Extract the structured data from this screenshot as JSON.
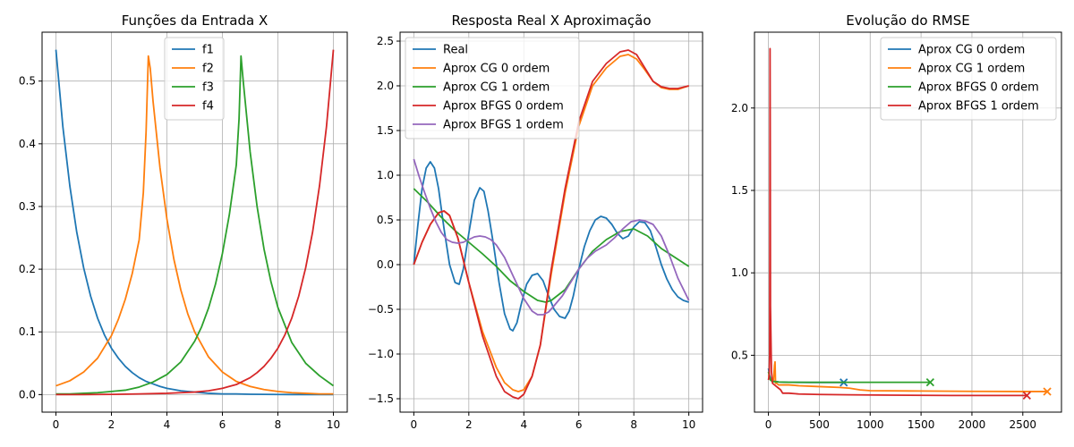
{
  "chart_data": [
    {
      "type": "line",
      "title": "Funções da Entrada X",
      "xlabel": "",
      "ylabel": "",
      "xlim": [
        -0.5,
        10.5
      ],
      "ylim": [
        -0.028,
        0.578
      ],
      "xticks": [
        0,
        2,
        4,
        6,
        8,
        10
      ],
      "yticks": [
        0.0,
        0.1,
        0.2,
        0.3,
        0.4,
        0.5
      ],
      "ytick_labels": [
        "0.0",
        "0.1",
        "0.2",
        "0.3",
        "0.4",
        "0.5"
      ],
      "grid": true,
      "legend_position": "top-center",
      "series": [
        {
          "name": "f1",
          "color": "#1f77b4",
          "x": [
            0,
            0.25,
            0.5,
            0.75,
            1,
            1.25,
            1.5,
            1.75,
            2,
            2.25,
            2.5,
            2.75,
            3,
            3.25,
            3.5,
            3.75,
            4,
            4.25,
            4.5,
            4.75,
            5,
            5.5,
            6,
            6.5,
            7,
            7.5,
            8,
            8.5,
            9,
            9.5,
            10
          ],
          "y": [
            0.55,
            0.427,
            0.333,
            0.259,
            0.202,
            0.157,
            0.122,
            0.095,
            0.074,
            0.058,
            0.045,
            0.035,
            0.027,
            0.021,
            0.017,
            0.013,
            0.01,
            0.008,
            0.006,
            0.005,
            0.004,
            0.002,
            0.001,
            0.001,
            0.0005,
            0.0003,
            0.0002,
            0.0001,
            0.0001,
            0.0,
            0.0
          ]
        },
        {
          "name": "f2",
          "color": "#ff7f0e",
          "x": [
            0,
            0.5,
            1,
            1.5,
            2,
            2.25,
            2.5,
            2.75,
            3,
            3.15,
            3.25,
            3.33,
            3.4,
            3.5,
            3.75,
            4,
            4.25,
            4.5,
            4.75,
            5,
            5.5,
            6,
            6.5,
            7,
            7.5,
            8,
            8.5,
            9,
            9.5,
            10
          ],
          "y": [
            0.014,
            0.022,
            0.036,
            0.058,
            0.094,
            0.12,
            0.152,
            0.193,
            0.247,
            0.322,
            0.42,
            0.54,
            0.52,
            0.468,
            0.362,
            0.28,
            0.216,
            0.167,
            0.129,
            0.1,
            0.06,
            0.036,
            0.021,
            0.013,
            0.008,
            0.005,
            0.003,
            0.002,
            0.001,
            0.001
          ]
        },
        {
          "name": "f3",
          "color": "#2ca02c",
          "x": [
            0,
            0.5,
            1,
            1.5,
            2,
            2.5,
            3,
            3.5,
            4,
            4.5,
            5,
            5.25,
            5.5,
            5.75,
            6,
            6.25,
            6.5,
            6.6,
            6.67,
            6.75,
            7,
            7.25,
            7.5,
            7.75,
            8,
            8.5,
            9,
            9.5,
            10
          ],
          "y": [
            0.001,
            0.001,
            0.002,
            0.003,
            0.005,
            0.007,
            0.012,
            0.02,
            0.032,
            0.052,
            0.085,
            0.108,
            0.138,
            0.176,
            0.225,
            0.287,
            0.366,
            0.44,
            0.54,
            0.5,
            0.387,
            0.3,
            0.232,
            0.18,
            0.139,
            0.083,
            0.05,
            0.03,
            0.014
          ]
        },
        {
          "name": "f4",
          "color": "#d62728",
          "x": [
            0,
            1,
            2,
            3,
            4,
            4.5,
            5,
            5.5,
            6,
            6.5,
            7,
            7.25,
            7.5,
            7.75,
            8,
            8.25,
            8.5,
            8.75,
            9,
            9.25,
            9.5,
            9.75,
            10
          ],
          "y": [
            0.0,
            0.0,
            0.0003,
            0.001,
            0.002,
            0.003,
            0.004,
            0.006,
            0.01,
            0.016,
            0.027,
            0.035,
            0.045,
            0.058,
            0.074,
            0.095,
            0.122,
            0.157,
            0.202,
            0.259,
            0.333,
            0.427,
            0.55
          ]
        }
      ]
    },
    {
      "type": "line",
      "title": "Resposta Real X Aproximação",
      "xlabel": "",
      "ylabel": "",
      "xlim": [
        -0.5,
        10.5
      ],
      "ylim": [
        -1.65,
        2.6
      ],
      "xticks": [
        0,
        2,
        4,
        6,
        8,
        10
      ],
      "yticks": [
        -1.5,
        -1.0,
        -0.5,
        0.0,
        0.5,
        1.0,
        1.5,
        2.0,
        2.5
      ],
      "ytick_labels": [
        "−1.5",
        "−1.0",
        "−0.5",
        "0.0",
        "0.5",
        "1.0",
        "1.5",
        "2.0",
        "2.5"
      ],
      "grid": true,
      "legend_position": "top-left",
      "series": [
        {
          "name": "Real",
          "color": "#1f77b4",
          "x": [
            0,
            0.15,
            0.3,
            0.45,
            0.6,
            0.75,
            0.9,
            1.1,
            1.3,
            1.5,
            1.65,
            1.8,
            2.0,
            2.2,
            2.4,
            2.55,
            2.7,
            2.9,
            3.1,
            3.3,
            3.5,
            3.6,
            3.75,
            3.9,
            4.1,
            4.3,
            4.5,
            4.7,
            4.9,
            5.1,
            5.3,
            5.5,
            5.65,
            5.8,
            6.0,
            6.2,
            6.4,
            6.6,
            6.8,
            7.0,
            7.2,
            7.4,
            7.6,
            7.8,
            8.0,
            8.2,
            8.4,
            8.6,
            8.8,
            9.0,
            9.2,
            9.4,
            9.6,
            9.8,
            10.0
          ],
          "y": [
            0.0,
            0.45,
            0.85,
            1.08,
            1.15,
            1.08,
            0.85,
            0.4,
            0.0,
            -0.2,
            -0.22,
            -0.05,
            0.35,
            0.72,
            0.86,
            0.82,
            0.6,
            0.22,
            -0.2,
            -0.55,
            -0.72,
            -0.74,
            -0.65,
            -0.45,
            -0.22,
            -0.12,
            -0.1,
            -0.18,
            -0.35,
            -0.5,
            -0.58,
            -0.6,
            -0.52,
            -0.35,
            -0.05,
            0.2,
            0.38,
            0.5,
            0.54,
            0.52,
            0.45,
            0.35,
            0.29,
            0.32,
            0.42,
            0.48,
            0.47,
            0.38,
            0.2,
            0.0,
            -0.16,
            -0.28,
            -0.36,
            -0.4,
            -0.42
          ]
        },
        {
          "name": "Aprox CG 0 ordem",
          "color": "#ff7f0e",
          "x": [
            0,
            0.3,
            0.6,
            0.9,
            1.1,
            1.3,
            1.6,
            2.0,
            2.5,
            3.0,
            3.3,
            3.6,
            3.8,
            4.0,
            4.3,
            4.6,
            5.0,
            5.5,
            6.0,
            6.5,
            7.0,
            7.5,
            7.8,
            8.1,
            8.4,
            8.7,
            9.0,
            9.3,
            9.6,
            10.0
          ],
          "y": [
            0.0,
            0.25,
            0.45,
            0.58,
            0.6,
            0.55,
            0.3,
            -0.2,
            -0.75,
            -1.15,
            -1.32,
            -1.4,
            -1.42,
            -1.4,
            -1.25,
            -0.9,
            -0.1,
            0.8,
            1.55,
            2.0,
            2.2,
            2.33,
            2.35,
            2.3,
            2.18,
            2.05,
            1.98,
            1.96,
            1.96,
            2.0
          ]
        },
        {
          "name": "Aprox CG 1 ordem",
          "color": "#2ca02c",
          "x": [
            0,
            0.5,
            1,
            1.5,
            2,
            2.5,
            3,
            3.5,
            4,
            4.5,
            4.8,
            5.0,
            5.5,
            6,
            6.5,
            7,
            7.5,
            8,
            8.5,
            9,
            9.5,
            10
          ],
          "y": [
            0.85,
            0.7,
            0.53,
            0.38,
            0.25,
            0.12,
            -0.02,
            -0.18,
            -0.3,
            -0.4,
            -0.42,
            -0.4,
            -0.28,
            -0.05,
            0.15,
            0.28,
            0.37,
            0.4,
            0.32,
            0.18,
            0.08,
            -0.02
          ]
        },
        {
          "name": "Aprox BFGS 0 ordem",
          "color": "#d62728",
          "x": [
            0,
            0.3,
            0.6,
            0.9,
            1.1,
            1.3,
            1.6,
            2.0,
            2.5,
            3.0,
            3.3,
            3.6,
            3.8,
            4.0,
            4.3,
            4.6,
            5.0,
            5.5,
            6.0,
            6.5,
            7.0,
            7.5,
            7.8,
            8.1,
            8.4,
            8.7,
            9.0,
            9.3,
            9.6,
            10.0
          ],
          "y": [
            0.0,
            0.25,
            0.45,
            0.58,
            0.6,
            0.55,
            0.3,
            -0.2,
            -0.8,
            -1.25,
            -1.42,
            -1.48,
            -1.5,
            -1.45,
            -1.25,
            -0.9,
            -0.05,
            0.85,
            1.6,
            2.05,
            2.25,
            2.38,
            2.4,
            2.35,
            2.2,
            2.05,
            1.99,
            1.97,
            1.97,
            2.0
          ]
        },
        {
          "name": "Aprox BFGS 1 ordem",
          "color": "#9467bd",
          "x": [
            0,
            0.2,
            0.4,
            0.6,
            0.8,
            1.0,
            1.2,
            1.4,
            1.6,
            1.8,
            2.0,
            2.2,
            2.4,
            2.6,
            2.8,
            3.0,
            3.3,
            3.6,
            4.0,
            4.3,
            4.5,
            4.7,
            4.9,
            5.1,
            5.4,
            5.7,
            6.0,
            6.3,
            6.6,
            7.0,
            7.3,
            7.6,
            7.9,
            8.2,
            8.4,
            8.7,
            9.0,
            9.3,
            9.6,
            10.0
          ],
          "y": [
            1.18,
            0.98,
            0.8,
            0.63,
            0.48,
            0.36,
            0.28,
            0.25,
            0.24,
            0.25,
            0.28,
            0.31,
            0.32,
            0.31,
            0.28,
            0.22,
            0.08,
            -0.12,
            -0.38,
            -0.52,
            -0.56,
            -0.56,
            -0.53,
            -0.46,
            -0.35,
            -0.2,
            -0.05,
            0.07,
            0.15,
            0.22,
            0.3,
            0.4,
            0.48,
            0.5,
            0.49,
            0.45,
            0.32,
            0.1,
            -0.15,
            -0.4
          ]
        }
      ]
    },
    {
      "type": "line",
      "title": "Evolução do RMSE",
      "xlabel": "",
      "ylabel": "",
      "xlim": [
        -137,
        2880
      ],
      "ylim": [
        0.155,
        2.46
      ],
      "xticks": [
        0,
        500,
        1000,
        1500,
        2000,
        2500
      ],
      "yticks": [
        0.5,
        1.0,
        1.5,
        2.0
      ],
      "ytick_labels": [
        "0.5",
        "1.0",
        "1.5",
        "2.0"
      ],
      "grid": true,
      "legend_position": "top-right",
      "series": [
        {
          "name": "Aprox CG 0 ordem",
          "color": "#1f77b4",
          "x": [
            0,
            10,
            20,
            40,
            100,
            200,
            400,
            600,
            740
          ],
          "y": [
            0.42,
            0.38,
            0.36,
            0.345,
            0.338,
            0.336,
            0.335,
            0.335,
            0.335
          ],
          "end_marker": true
        },
        {
          "name": "Aprox CG 1 ordem",
          "color": "#ff7f0e",
          "x": [
            0,
            15,
            30,
            50,
            60,
            65,
            70,
            80,
            100,
            150,
            200,
            300,
            500,
            700,
            800,
            900,
            1000,
            1500,
            2000,
            2500,
            2740
          ],
          "y": [
            0.38,
            0.36,
            0.35,
            0.35,
            0.44,
            0.46,
            0.33,
            0.33,
            0.32,
            0.32,
            0.32,
            0.315,
            0.31,
            0.305,
            0.3,
            0.29,
            0.285,
            0.283,
            0.281,
            0.28,
            0.28
          ],
          "end_marker": true
        },
        {
          "name": "Aprox BFGS 0 ordem",
          "color": "#2ca02c",
          "x": [
            0,
            10,
            20,
            40,
            60,
            100,
            200,
            300,
            500,
            800,
            1100,
            1400,
            1590
          ],
          "y": [
            0.4,
            0.37,
            0.35,
            0.34,
            0.34,
            0.338,
            0.336,
            0.336,
            0.336,
            0.336,
            0.336,
            0.336,
            0.336
          ],
          "end_marker": true
        },
        {
          "name": "Aprox BFGS 1 ordem",
          "color": "#d62728",
          "x": [
            0,
            8,
            12,
            14,
            16,
            18,
            20,
            30,
            40,
            60,
            80,
            100,
            120,
            140,
            160,
            200,
            300,
            500,
            800,
            1200,
            1800,
            2200,
            2540
          ],
          "y": [
            0.35,
            0.38,
            0.5,
            1.2,
            2.36,
            1.8,
            0.8,
            0.4,
            0.33,
            0.32,
            0.31,
            0.3,
            0.29,
            0.27,
            0.27,
            0.27,
            0.265,
            0.262,
            0.26,
            0.258,
            0.256,
            0.256,
            0.256
          ],
          "end_marker": true
        }
      ]
    }
  ]
}
